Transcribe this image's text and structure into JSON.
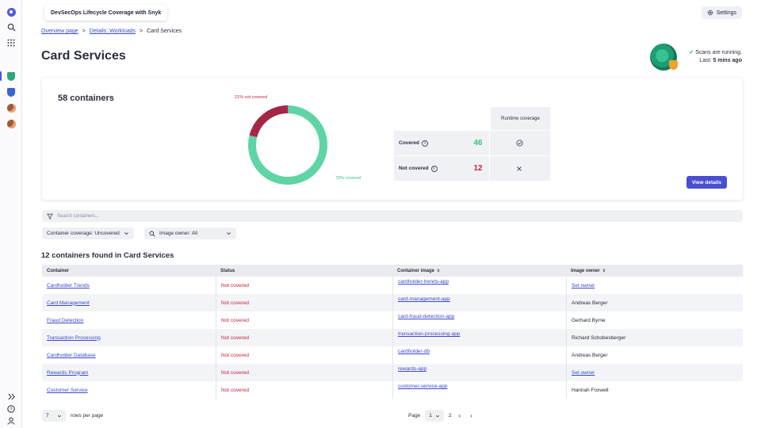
{
  "header": {
    "app_title": "DevSecOps Lifecycle Coverage with Snyk",
    "settings_label": "Settings"
  },
  "breadcrumb": {
    "items": [
      "Overview page",
      "Details: Workloads"
    ],
    "current": "Card Services",
    "separator": ">"
  },
  "page_title": "Card Services",
  "scan_status": {
    "line1": "Scans are running.",
    "last_prefix": "Last: ",
    "last_value": "5 mins ago"
  },
  "summary": {
    "title": "58 containers",
    "donut": {
      "not_covered_label": "21% not covered",
      "covered_label": "79% covered",
      "not_covered_pct": 21,
      "covered_pct": 79,
      "colors": {
        "covered": "#5fd4a4",
        "not_covered": "#a52746"
      }
    },
    "table": {
      "header": "Runtime coverage",
      "rows": [
        {
          "label": "Covered",
          "count": "46",
          "color": "#3fbf8a",
          "icon": "check-circle-icon"
        },
        {
          "label": "Not covered",
          "count": "12",
          "color": "#c0273d",
          "icon": "close-icon"
        }
      ]
    },
    "view_details_label": "View details"
  },
  "filters": {
    "search_placeholder": "Search containers...",
    "container_coverage": "Container coverage: Uncovered",
    "image_owner": "Image owner: All"
  },
  "results_title": "12 containers found in Card Services",
  "table": {
    "columns": [
      "Container",
      "Status",
      "Container image",
      "Image owner"
    ],
    "rows": [
      {
        "container": "Cardholder Trends",
        "status": "Not covered",
        "image": "cardholder-trends-app",
        "owner": "Set owner",
        "owner_link": true
      },
      {
        "container": "Card Management",
        "status": "Not covered",
        "image": "card-management-app",
        "owner": "Andreas Berger",
        "owner_link": false
      },
      {
        "container": "Fraud Detection",
        "status": "Not covered",
        "image": "card-fraud-detection-app",
        "owner": "Gerhard Byrne",
        "owner_link": false
      },
      {
        "container": "Transaction Processing",
        "status": "Not covered",
        "image": "transaction-processing-app",
        "owner": "Richard Schobesberger",
        "owner_link": false
      },
      {
        "container": "Cardholder Database",
        "status": "Not covered",
        "image": "cardholder-db",
        "owner": "Andreas Berger",
        "owner_link": false
      },
      {
        "container": "Rewards Program",
        "status": "Not covered",
        "image": "rewards-app",
        "owner": "Set owner",
        "owner_link": true
      },
      {
        "container": "Customer Service",
        "status": "Not covered",
        "image": "customer-service-app",
        "owner": "Hannah Foxwell",
        "owner_link": false
      }
    ]
  },
  "pagination": {
    "rows_per_page_value": "7",
    "rows_per_page_label": "rows per page",
    "page_label": "Page",
    "current_page": "1",
    "other_page": "2"
  }
}
